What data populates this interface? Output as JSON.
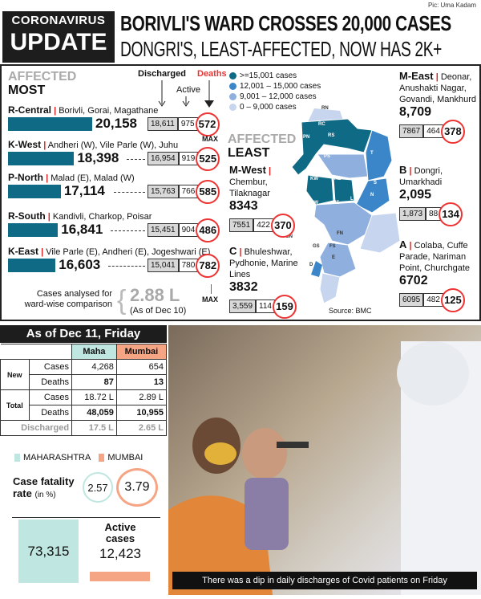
{
  "credit": "Pic: Uma Kadam",
  "header": {
    "kicker": "CORONAVIRUS",
    "kicker2": "UPDATE",
    "headline": "BORIVLI'S WARD CROSSES 20,000 CASES",
    "subhead": "DONGRI'S, LEAST-AFFECTED, NOW HAS 2K+"
  },
  "most": {
    "title1": "AFFECTED",
    "title2": "MOST",
    "col_discharged": "Discharged",
    "col_active": "Active",
    "col_deaths": "Deaths",
    "max_label": "MAX",
    "wards": [
      {
        "ward": "R-Central",
        "areas": "Borivli, Gorai, Magathane",
        "total": "20,158",
        "total_value": 20158,
        "discharged": "18,611",
        "active": "975",
        "deaths": "572"
      },
      {
        "ward": "K-West",
        "areas": "Andheri (W), Vile Parle (W), Juhu",
        "total": "18,398",
        "total_value": 18398,
        "discharged": "16,954",
        "active": "919",
        "deaths": "525"
      },
      {
        "ward": "P-North",
        "areas": "Malad (E), Malad (W)",
        "total": "17,114",
        "total_value": 17114,
        "discharged": "15,763",
        "active": "766",
        "deaths": "585"
      },
      {
        "ward": "R-South",
        "areas": "Kandivli, Charkop, Poisar",
        "total": "16,841",
        "total_value": 16841,
        "discharged": "15,451",
        "active": "904",
        "deaths": "486"
      },
      {
        "ward": "K-East",
        "areas": "Vile Parle (E), Andheri (E), Jogeshwari (E)",
        "total": "16,603",
        "total_value": 16603,
        "discharged": "15,041",
        "active": "780",
        "deaths": "782"
      }
    ],
    "analysed_label": "Cases analysed for ward-wise comparison",
    "analysed_value": "2.88 L",
    "analysed_date": "(As of Dec 10)"
  },
  "legend": [
    {
      "label": ">=15,001 cases",
      "color": "#0f6a86"
    },
    {
      "label": "12,001 – 15,000 cases",
      "color": "#3a86c8"
    },
    {
      "label": "9,001 – 12,000 cases",
      "color": "#8fb0de"
    },
    {
      "label": "0 – 9,000 cases",
      "color": "#c7d5ee"
    }
  ],
  "least": {
    "title1": "AFFECTED",
    "title2": "LEAST",
    "wards": [
      {
        "ward": "M-West",
        "areas": "Chembur, Tilaknagar",
        "total": "8343",
        "discharged": "7551",
        "active": "422",
        "deaths": "370"
      },
      {
        "ward": "C",
        "areas": "Bhuleshwar, Pydhonie, Marine Lines",
        "total": "3832",
        "discharged": "3,559",
        "active": "114",
        "deaths": "159"
      },
      {
        "ward": "M-East",
        "areas": "Deonar, Anushakti Nagar, Govandi, Mankhurd",
        "total": "8,709",
        "discharged": "7867",
        "active": "464",
        "deaths": "378"
      },
      {
        "ward": "B",
        "areas": "Dongri, Umarkhadi",
        "total": "2,095",
        "discharged": "1,873",
        "active": "88",
        "deaths": "134"
      },
      {
        "ward": "A",
        "areas": "Colaba, Cuffe Parade, Nariman Point, Churchgate",
        "total": "6702",
        "discharged": "6095",
        "active": "482",
        "deaths": "125"
      }
    ]
  },
  "map_labels": [
    "RN",
    "RC",
    "RS",
    "PN",
    "PS",
    "KW",
    "KE",
    "T",
    "S",
    "N",
    "HW",
    "HE",
    "L",
    "GN",
    "FN",
    "GS",
    "FS",
    "D",
    "E"
  ],
  "source": "Source: BMC",
  "stats": {
    "title": "As of Dec 11, Friday",
    "col_maha": "Maha",
    "col_mumbai": "Mumbai",
    "new": "New",
    "total": "Total",
    "cases": "Cases",
    "deaths": "Deaths",
    "discharged": "Discharged",
    "new_cases": [
      "4,268",
      "654"
    ],
    "new_deaths": [
      "87",
      "13"
    ],
    "total_cases": [
      "18.72 L",
      "2.89 L"
    ],
    "total_deaths": [
      "48,059",
      "10,955"
    ],
    "discharged_vals": [
      "17.5 L",
      "2.65 L"
    ],
    "legend_maha": "MAHARASHTRA",
    "legend_mumbai": "MUMBAI",
    "cfr_label": "Case fatality",
    "cfr_label2": "rate",
    "cfr_unit": "(in %)",
    "cfr_maha": "2.57",
    "cfr_mumbai": "3.79",
    "active_label1": "Active",
    "active_label2": "cases",
    "active_maha": "73,315",
    "active_mumbai": "12,423",
    "maha_color": "#bfe6e0",
    "mumbai_color": "#f5a584"
  },
  "photo_caption": "There was a dip in daily discharges of Covid patients on Friday"
}
